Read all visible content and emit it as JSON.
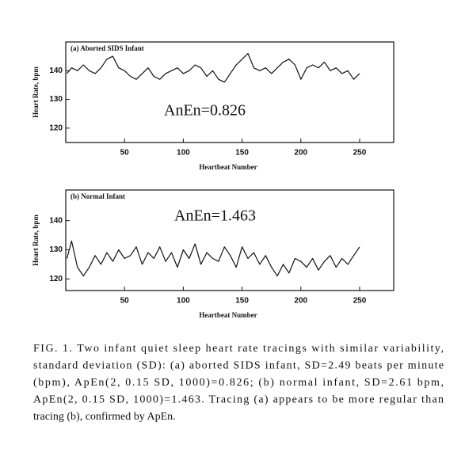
{
  "chart_data": [
    {
      "type": "line",
      "title": "(a) Aborted SIDS Infant",
      "annotation": "AnEn=0.826",
      "xlabel": "Heartbeat Number",
      "ylabel": "Heart Rate, bpm",
      "x": [
        1,
        5,
        10,
        15,
        20,
        25,
        30,
        35,
        40,
        45,
        50,
        55,
        60,
        65,
        70,
        75,
        80,
        85,
        90,
        95,
        100,
        105,
        110,
        115,
        120,
        125,
        130,
        135,
        140,
        145,
        150,
        155,
        160,
        165,
        170,
        175,
        180,
        185,
        190,
        195,
        200,
        205,
        210,
        215,
        220,
        225,
        230,
        235,
        240,
        245,
        250
      ],
      "series": [
        {
          "color": "#111",
          "values": [
            139,
            141,
            140,
            142,
            140,
            139,
            141,
            144,
            145,
            141,
            140,
            138,
            137,
            139,
            141,
            138,
            137,
            139,
            140,
            141,
            139,
            140,
            142,
            141,
            138,
            140,
            137,
            136,
            139,
            142,
            144,
            146,
            141,
            140,
            141,
            139,
            141,
            143,
            144,
            142,
            137,
            141,
            142,
            141,
            143,
            140,
            141,
            139,
            140,
            137,
            139
          ]
        }
      ],
      "xlim": [
        0,
        279
      ],
      "ylim": [
        115,
        150
      ],
      "xticks": [
        50,
        100,
        150,
        200,
        250
      ],
      "yticks": [
        120,
        130,
        140
      ]
    },
    {
      "type": "line",
      "title": "(b) Normal Infant",
      "annotation": "AnEn=1.463",
      "xlabel": "Heartbeat Number",
      "ylabel": "Heart Rate, bpm",
      "x": [
        1,
        5,
        10,
        15,
        20,
        25,
        30,
        35,
        40,
        45,
        50,
        55,
        60,
        65,
        70,
        75,
        80,
        85,
        90,
        95,
        100,
        105,
        110,
        115,
        120,
        125,
        130,
        135,
        140,
        145,
        150,
        155,
        160,
        165,
        170,
        175,
        180,
        185,
        190,
        195,
        200,
        205,
        210,
        215,
        220,
        225,
        230,
        235,
        240,
        245,
        250
      ],
      "series": [
        {
          "color": "#111",
          "values": [
            127,
            133,
            124,
            121,
            124,
            128,
            125,
            129,
            126,
            130,
            127,
            128,
            131,
            125,
            129,
            127,
            131,
            126,
            129,
            124,
            130,
            127,
            132,
            125,
            129,
            127,
            126,
            131,
            128,
            124,
            131,
            127,
            129,
            125,
            128,
            124,
            121,
            125,
            122,
            127,
            126,
            124,
            127,
            123,
            126,
            128,
            124,
            127,
            125,
            128,
            131
          ]
        }
      ],
      "xlim": [
        0,
        279
      ],
      "ylim": [
        116,
        150.5
      ],
      "xticks": [
        50,
        100,
        150,
        200,
        250
      ],
      "yticks": [
        120,
        130,
        140
      ]
    }
  ],
  "caption": {
    "lines": [
      "FIG. 1. Two infant quiet sleep heart rate tracings with similar variability,",
      "standard deviation (SD): (a) aborted SIDS infant, SD=2.49 beats per minute",
      "(bpm), ApEn(2, 0.15 SD, 1000)=0.826; (b) normal infant, SD=2.61 bpm,",
      "ApEn(2, 0.15 SD, 1000)=1.463. Tracing (a) appears to be more regular than",
      "tracing (b), confirmed by ApEn."
    ]
  }
}
